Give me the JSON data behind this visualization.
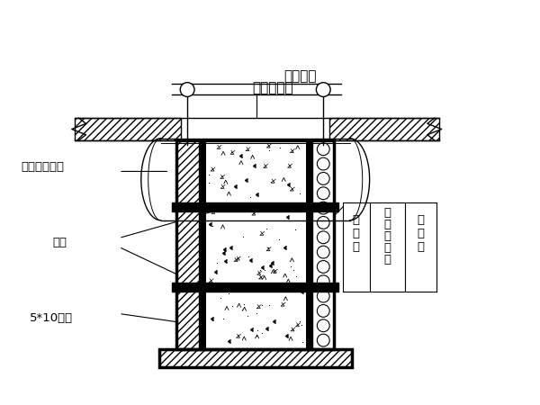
{
  "bg_color": "#ffffff",
  "colors": {
    "black": "#000000",
    "white": "#ffffff"
  },
  "labels": {
    "yi_ceng_mian_bei": "一层棉被",
    "yi_ceng_su_liao_bu": "一层塑料布",
    "tie_si": "铁丝绑扎牢固",
    "la_gan": "拉杆",
    "fang_mu": "5*10方木",
    "zhu_jiao_ban": "竹\n胶\n板",
    "su_liao_pao_mo": "塑\n料\n泡\n沫\n板",
    "bai_tie_pi": "白\n铁\n皮"
  }
}
